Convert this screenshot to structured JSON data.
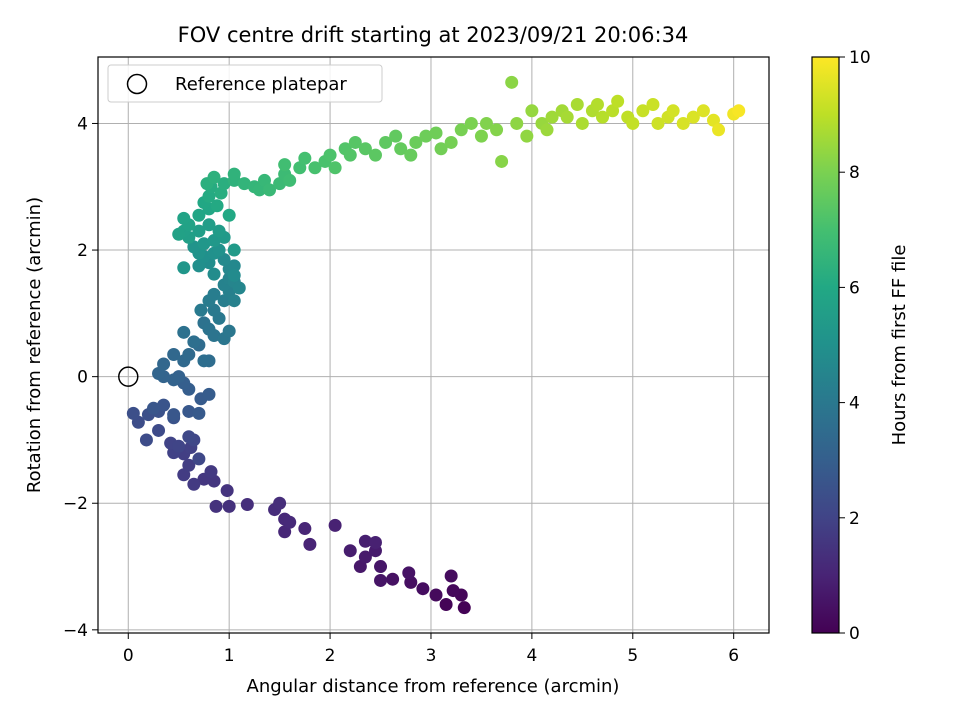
{
  "chart_data": {
    "type": "scatter",
    "title": "FOV centre drift starting at 2023/09/21 20:06:34",
    "xlabel": "Angular distance from reference (arcmin)",
    "ylabel": "Rotation from reference (arcmin)",
    "xlim": [
      -0.3,
      6.35
    ],
    "ylim": [
      -4.05,
      5.05
    ],
    "xticks": [
      0,
      1,
      2,
      3,
      4,
      5,
      6
    ],
    "yticks": [
      -4,
      -2,
      0,
      2,
      4
    ],
    "grid": true,
    "legend": {
      "position": "top-left",
      "label": "Reference platepar",
      "marker": "open-circle"
    },
    "reference_point": {
      "x": 0,
      "y": 0
    },
    "colorbar": {
      "label": "Hours from first FF file",
      "range": [
        0,
        10
      ],
      "ticks": [
        0,
        2,
        4,
        6,
        8,
        10
      ],
      "colormap": "viridis"
    },
    "series": [
      {
        "color_by": "hours",
        "points": [
          [
            3.33,
            -3.65,
            0.05
          ],
          [
            3.15,
            -3.6,
            0.1
          ],
          [
            3.3,
            -3.45,
            0.15
          ],
          [
            3.22,
            -3.38,
            0.2
          ],
          [
            3.05,
            -3.45,
            0.25
          ],
          [
            3.2,
            -3.15,
            0.3
          ],
          [
            2.92,
            -3.35,
            0.35
          ],
          [
            2.8,
            -3.25,
            0.4
          ],
          [
            2.62,
            -3.2,
            0.45
          ],
          [
            2.78,
            -3.1,
            0.5
          ],
          [
            2.5,
            -3.22,
            0.55
          ],
          [
            2.5,
            -3.0,
            0.6
          ],
          [
            2.3,
            -3.0,
            0.65
          ],
          [
            2.35,
            -2.85,
            0.7
          ],
          [
            2.45,
            -2.75,
            0.75
          ],
          [
            2.2,
            -2.75,
            0.8
          ],
          [
            2.35,
            -2.6,
            0.85
          ],
          [
            2.45,
            -2.62,
            0.9
          ],
          [
            2.05,
            -2.35,
            0.95
          ],
          [
            1.8,
            -2.65,
            1.0
          ],
          [
            1.75,
            -2.4,
            1.05
          ],
          [
            1.55,
            -2.45,
            1.1
          ],
          [
            1.55,
            -2.25,
            1.15
          ],
          [
            1.6,
            -2.3,
            1.2
          ],
          [
            1.45,
            -2.1,
            1.25
          ],
          [
            1.5,
            -2.0,
            1.3
          ],
          [
            1.18,
            -2.02,
            1.35
          ],
          [
            1.0,
            -2.05,
            1.4
          ],
          [
            0.87,
            -2.05,
            1.45
          ],
          [
            0.98,
            -1.8,
            1.5
          ],
          [
            0.85,
            -1.65,
            1.55
          ],
          [
            0.75,
            -1.62,
            1.6
          ],
          [
            0.82,
            -1.5,
            1.65
          ],
          [
            0.65,
            -1.7,
            1.7
          ],
          [
            0.55,
            -1.55,
            1.75
          ],
          [
            0.6,
            -1.4,
            1.8
          ],
          [
            0.55,
            -1.22,
            1.85
          ],
          [
            0.62,
            -1.12,
            1.9
          ],
          [
            0.45,
            -1.2,
            1.95
          ],
          [
            0.42,
            -1.05,
            2.0
          ],
          [
            0.5,
            -1.1,
            2.05
          ],
          [
            0.65,
            -1.0,
            2.1
          ],
          [
            0.7,
            -1.3,
            2.15
          ],
          [
            0.6,
            -0.95,
            2.2
          ],
          [
            0.3,
            -0.85,
            2.25
          ],
          [
            0.18,
            -1.0,
            2.3
          ],
          [
            0.1,
            -0.72,
            2.35
          ],
          [
            0.05,
            -0.58,
            2.4
          ],
          [
            0.2,
            -0.6,
            2.45
          ],
          [
            0.3,
            -0.55,
            2.5
          ],
          [
            0.45,
            -0.65,
            2.55
          ],
          [
            0.35,
            -0.45,
            2.6
          ],
          [
            0.25,
            -0.5,
            2.65
          ],
          [
            0.45,
            -0.6,
            2.7
          ],
          [
            0.6,
            -0.55,
            2.75
          ],
          [
            0.7,
            -0.58,
            2.8
          ],
          [
            0.72,
            -0.35,
            2.85
          ],
          [
            0.8,
            -0.28,
            2.9
          ],
          [
            0.6,
            -0.2,
            2.95
          ],
          [
            0.55,
            -0.1,
            3.0
          ],
          [
            0.5,
            0.0,
            3.1
          ],
          [
            0.45,
            -0.05,
            3.15
          ],
          [
            0.35,
            0.0,
            3.2
          ],
          [
            0.3,
            0.05,
            3.25
          ],
          [
            0.35,
            0.2,
            3.3
          ],
          [
            0.45,
            0.35,
            3.35
          ],
          [
            0.55,
            0.25,
            3.4
          ],
          [
            0.6,
            0.35,
            3.45
          ],
          [
            0.7,
            0.5,
            3.5
          ],
          [
            0.8,
            0.25,
            3.55
          ],
          [
            0.75,
            0.25,
            3.6
          ],
          [
            0.65,
            0.55,
            3.65
          ],
          [
            0.55,
            0.7,
            3.7
          ],
          [
            0.75,
            0.85,
            3.75
          ],
          [
            0.8,
            0.75,
            3.8
          ],
          [
            0.85,
            0.65,
            3.85
          ],
          [
            0.95,
            0.6,
            3.9
          ],
          [
            1.0,
            0.72,
            3.95
          ],
          [
            0.9,
            0.92,
            4.0
          ],
          [
            0.85,
            1.05,
            4.05
          ],
          [
            0.72,
            1.05,
            4.1
          ],
          [
            0.8,
            1.2,
            4.15
          ],
          [
            0.85,
            1.3,
            4.2
          ],
          [
            0.95,
            1.2,
            4.25
          ],
          [
            1.0,
            1.35,
            4.3
          ],
          [
            1.05,
            1.2,
            4.35
          ],
          [
            0.95,
            1.45,
            4.4
          ],
          [
            1.0,
            1.55,
            4.45
          ],
          [
            1.05,
            1.5,
            4.5
          ],
          [
            1.1,
            1.4,
            4.55
          ],
          [
            1.0,
            1.7,
            4.6
          ],
          [
            1.05,
            1.75,
            4.65
          ],
          [
            0.95,
            1.85,
            4.7
          ],
          [
            1.05,
            1.6,
            4.75
          ],
          [
            0.85,
            1.62,
            4.8
          ],
          [
            0.8,
            1.8,
            4.85
          ],
          [
            0.7,
            1.75,
            4.9
          ],
          [
            0.75,
            1.9,
            4.95
          ],
          [
            0.85,
            1.95,
            5.0
          ],
          [
            0.9,
            2.0,
            5.05
          ],
          [
            0.7,
            1.95,
            5.1
          ],
          [
            0.65,
            2.05,
            5.15
          ],
          [
            0.55,
            1.72,
            5.2
          ],
          [
            0.75,
            2.1,
            5.25
          ],
          [
            0.85,
            2.15,
            5.3
          ],
          [
            0.95,
            2.2,
            5.35
          ],
          [
            1.05,
            2.0,
            5.4
          ],
          [
            0.9,
            2.3,
            5.45
          ],
          [
            0.8,
            2.4,
            5.5
          ],
          [
            0.7,
            2.3,
            5.55
          ],
          [
            0.6,
            2.2,
            5.6
          ],
          [
            0.55,
            2.3,
            5.65
          ],
          [
            0.5,
            2.25,
            5.7
          ],
          [
            0.6,
            2.4,
            5.75
          ],
          [
            0.55,
            2.5,
            5.8
          ],
          [
            0.7,
            2.55,
            5.85
          ],
          [
            0.8,
            2.65,
            5.9
          ],
          [
            0.75,
            2.75,
            5.95
          ],
          [
            1.0,
            2.55,
            6.0
          ],
          [
            0.88,
            2.7,
            6.05
          ],
          [
            0.8,
            2.85,
            6.1
          ],
          [
            0.82,
            3.0,
            6.15
          ],
          [
            0.92,
            2.9,
            6.2
          ],
          [
            0.95,
            3.05,
            6.25
          ],
          [
            0.78,
            3.05,
            6.3
          ],
          [
            0.85,
            3.15,
            6.35
          ],
          [
            1.05,
            3.1,
            6.4
          ],
          [
            1.05,
            3.2,
            6.45
          ],
          [
            1.15,
            3.05,
            6.5
          ],
          [
            1.25,
            3.0,
            6.55
          ],
          [
            1.3,
            2.95,
            6.6
          ],
          [
            1.35,
            3.1,
            6.65
          ],
          [
            1.4,
            2.95,
            6.7
          ],
          [
            1.5,
            3.05,
            6.75
          ],
          [
            1.55,
            3.2,
            6.8
          ],
          [
            1.6,
            3.1,
            6.85
          ],
          [
            1.55,
            3.35,
            6.9
          ],
          [
            1.7,
            3.3,
            6.95
          ],
          [
            1.75,
            3.45,
            7.0
          ],
          [
            1.85,
            3.3,
            7.05
          ],
          [
            1.95,
            3.4,
            7.1
          ],
          [
            2.0,
            3.5,
            7.15
          ],
          [
            2.05,
            3.3,
            7.2
          ],
          [
            2.15,
            3.6,
            7.25
          ],
          [
            2.2,
            3.5,
            7.3
          ],
          [
            2.25,
            3.7,
            7.35
          ],
          [
            2.35,
            3.6,
            7.4
          ],
          [
            2.45,
            3.5,
            7.45
          ],
          [
            2.55,
            3.7,
            7.5
          ],
          [
            2.65,
            3.8,
            7.55
          ],
          [
            2.7,
            3.6,
            7.6
          ],
          [
            2.8,
            3.5,
            7.65
          ],
          [
            2.85,
            3.7,
            7.7
          ],
          [
            2.95,
            3.8,
            7.75
          ],
          [
            3.05,
            3.85,
            7.8
          ],
          [
            3.1,
            3.6,
            7.85
          ],
          [
            3.2,
            3.7,
            7.9
          ],
          [
            3.3,
            3.9,
            7.95
          ],
          [
            3.4,
            4.0,
            8.0
          ],
          [
            3.5,
            3.8,
            8.05
          ],
          [
            3.55,
            4.0,
            8.1
          ],
          [
            3.65,
            3.9,
            8.15
          ],
          [
            3.7,
            3.4,
            8.2
          ],
          [
            3.8,
            4.65,
            8.25
          ],
          [
            3.85,
            4.0,
            8.3
          ],
          [
            3.95,
            3.8,
            8.35
          ],
          [
            4.0,
            4.2,
            8.4
          ],
          [
            4.1,
            4.0,
            8.45
          ],
          [
            4.15,
            3.9,
            8.5
          ],
          [
            4.2,
            4.1,
            8.55
          ],
          [
            4.3,
            4.2,
            8.6
          ],
          [
            4.35,
            4.1,
            8.65
          ],
          [
            4.45,
            4.3,
            8.7
          ],
          [
            4.5,
            4.0,
            8.75
          ],
          [
            4.6,
            4.2,
            8.8
          ],
          [
            4.65,
            4.3,
            8.85
          ],
          [
            4.7,
            4.1,
            8.9
          ],
          [
            4.8,
            4.2,
            8.95
          ],
          [
            4.85,
            4.35,
            9.0
          ],
          [
            4.95,
            4.1,
            9.05
          ],
          [
            5.0,
            4.0,
            9.1
          ],
          [
            5.1,
            4.2,
            9.15
          ],
          [
            5.2,
            4.3,
            9.2
          ],
          [
            5.25,
            4.0,
            9.25
          ],
          [
            5.35,
            4.1,
            9.3
          ],
          [
            5.4,
            4.2,
            9.35
          ],
          [
            5.5,
            4.0,
            9.4
          ],
          [
            5.6,
            4.1,
            9.45
          ],
          [
            5.7,
            4.2,
            9.5
          ],
          [
            5.8,
            4.05,
            9.6
          ],
          [
            5.85,
            3.9,
            9.7
          ],
          [
            6.0,
            4.15,
            9.8
          ],
          [
            6.05,
            4.2,
            9.9
          ]
        ]
      }
    ]
  }
}
